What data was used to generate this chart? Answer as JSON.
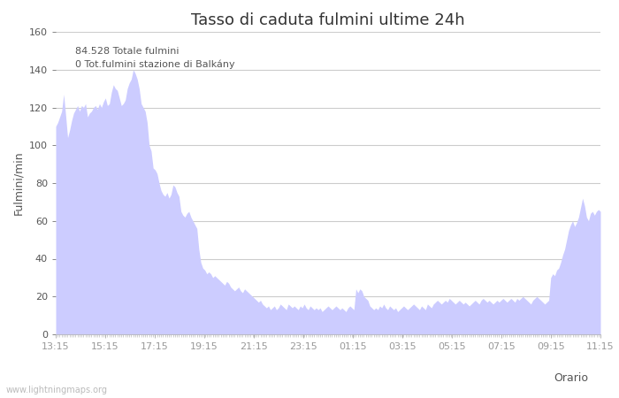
{
  "title": "Tasso di caduta fulmini ultime 24h",
  "xlabel": "Orario",
  "ylabel": "Fulmini/min",
  "ylim": [
    0,
    160
  ],
  "yticks": [
    0,
    20,
    40,
    60,
    80,
    100,
    120,
    140,
    160
  ],
  "xtick_labels": [
    "13:15",
    "15:15",
    "17:15",
    "19:15",
    "21:15",
    "23:15",
    "01:15",
    "03:15",
    "05:15",
    "07:15",
    "09:15",
    "11:15"
  ],
  "annotation_line1": "84.528 Totale fulmini",
  "annotation_line2": "0 Tot.fulmini stazione di Balkány",
  "legend_label1": "Totale fulmini",
  "legend_label2": "Fulmini stazione di",
  "fill_color": "#ccccff",
  "fill_color2": "#8888cc",
  "watermark": "www.lightningmaps.org",
  "bg_color": "#ffffff",
  "grid_color": "#cccccc",
  "title_fontsize": 13,
  "axis_fontsize": 9,
  "tick_fontsize": 8,
  "y_values": [
    110,
    112,
    115,
    118,
    127,
    116,
    104,
    108,
    113,
    117,
    119,
    121,
    118,
    121,
    120,
    122,
    115,
    117,
    118,
    120,
    121,
    119,
    122,
    120,
    123,
    125,
    121,
    122,
    128,
    132,
    130,
    129,
    125,
    121,
    122,
    124,
    130,
    133,
    135,
    140,
    138,
    135,
    130,
    122,
    120,
    118,
    112,
    100,
    97,
    88,
    87,
    85,
    80,
    76,
    74,
    73,
    75,
    72,
    74,
    79,
    78,
    75,
    73,
    65,
    63,
    62,
    64,
    65,
    62,
    60,
    58,
    56,
    45,
    38,
    35,
    34,
    32,
    33,
    32,
    30,
    31,
    30,
    29,
    28,
    27,
    26,
    28,
    27,
    25,
    24,
    23,
    24,
    25,
    23,
    22,
    24,
    23,
    22,
    21,
    20,
    19,
    18,
    17,
    18,
    16,
    15,
    14,
    15,
    13,
    14,
    15,
    13,
    14,
    16,
    15,
    14,
    13,
    16,
    15,
    14,
    15,
    14,
    13,
    15,
    14,
    16,
    14,
    13,
    15,
    14,
    13,
    14,
    13,
    14,
    12,
    13,
    14,
    15,
    14,
    13,
    14,
    15,
    14,
    13,
    14,
    13,
    12,
    14,
    15,
    14,
    13,
    24,
    22,
    24,
    23,
    20,
    19,
    18,
    15,
    14,
    13,
    14,
    13,
    15,
    14,
    16,
    14,
    13,
    15,
    14,
    13,
    14,
    12,
    13,
    14,
    15,
    14,
    13,
    14,
    15,
    16,
    15,
    14,
    13,
    15,
    14,
    13,
    16,
    15,
    14,
    16,
    17,
    18,
    17,
    16,
    17,
    18,
    17,
    19,
    18,
    17,
    16,
    17,
    18,
    17,
    16,
    17,
    16,
    15,
    16,
    17,
    18,
    17,
    16,
    18,
    19,
    18,
    17,
    18,
    17,
    16,
    17,
    18,
    17,
    18,
    19,
    18,
    17,
    18,
    19,
    18,
    17,
    19,
    18,
    19,
    20,
    19,
    18,
    17,
    16,
    18,
    19,
    20,
    19,
    18,
    17,
    16,
    17,
    18,
    30,
    32,
    31,
    34,
    35,
    38,
    42,
    45,
    50,
    55,
    58,
    60,
    57,
    59,
    62,
    67,
    72,
    68,
    62,
    60,
    64,
    65,
    63,
    65,
    66,
    65
  ]
}
